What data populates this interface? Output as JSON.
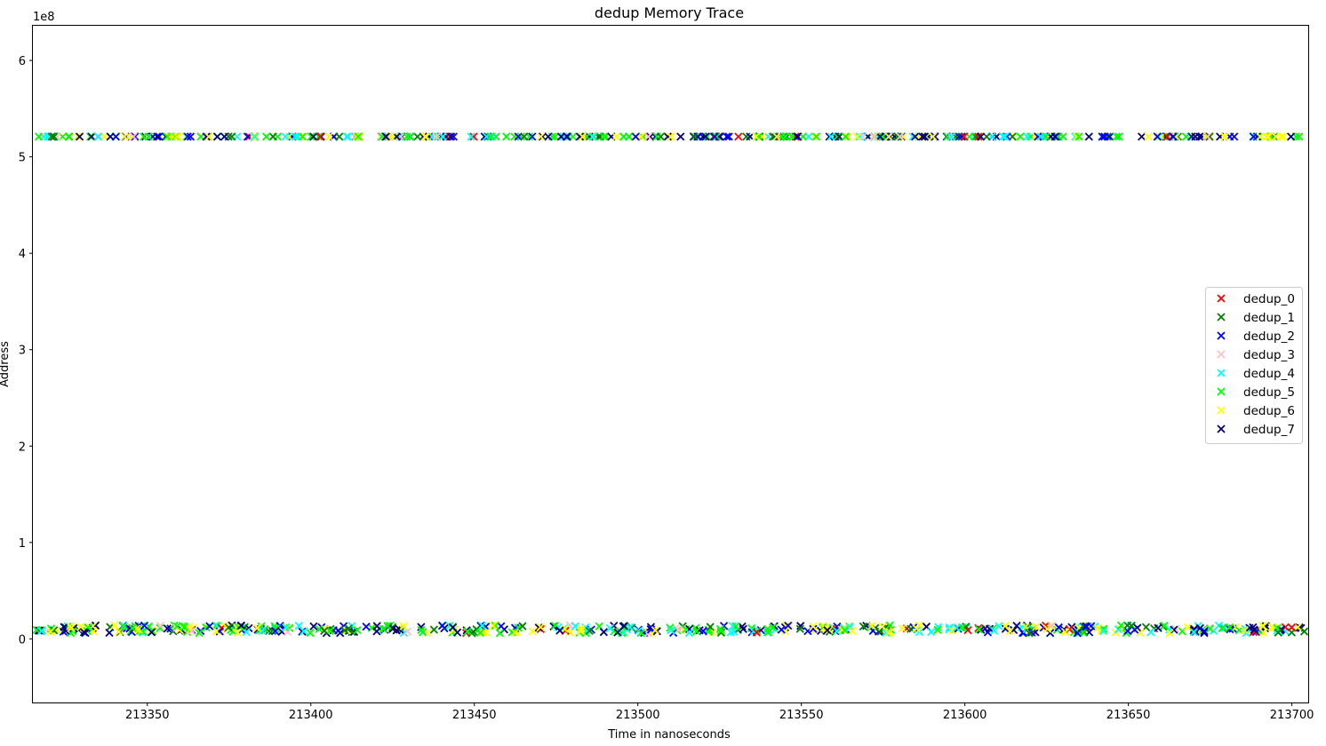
{
  "chart_data": {
    "type": "scatter",
    "title": "dedup Memory Trace",
    "xlabel": "Time in nanoseconds",
    "ylabel": "Address",
    "y_offset_label": "1e8",
    "xlim": [
      213315,
      213705
    ],
    "ylim": [
      -0.66,
      6.36
    ],
    "y_scale_note": "values in units of 1e8",
    "x_ticks": [
      213350,
      213400,
      213450,
      213500,
      213550,
      213600,
      213650,
      213700
    ],
    "y_ticks": [
      0,
      1,
      2,
      3,
      4,
      5,
      6
    ],
    "grid": false,
    "legend_position": "center right",
    "marker": "x",
    "series": [
      {
        "name": "dedup_0",
        "color": "#ff0000"
      },
      {
        "name": "dedup_1",
        "color": "#008000"
      },
      {
        "name": "dedup_2",
        "color": "#0000ff"
      },
      {
        "name": "dedup_3",
        "color": "#ffc0cb"
      },
      {
        "name": "dedup_4",
        "color": "#00ffff"
      },
      {
        "name": "dedup_5",
        "color": "#00ff00"
      },
      {
        "name": "dedup_6",
        "color": "#ffff00"
      },
      {
        "name": "dedup_7",
        "color": "#000080"
      }
    ],
    "bands": [
      {
        "label": "high",
        "y_center": 5.21,
        "y_jitter": 0.0
      },
      {
        "label": "low",
        "y_center": 0.1,
        "y_jitter": 0.04
      }
    ],
    "x_range_sampled": [
      213316,
      213704
    ]
  }
}
